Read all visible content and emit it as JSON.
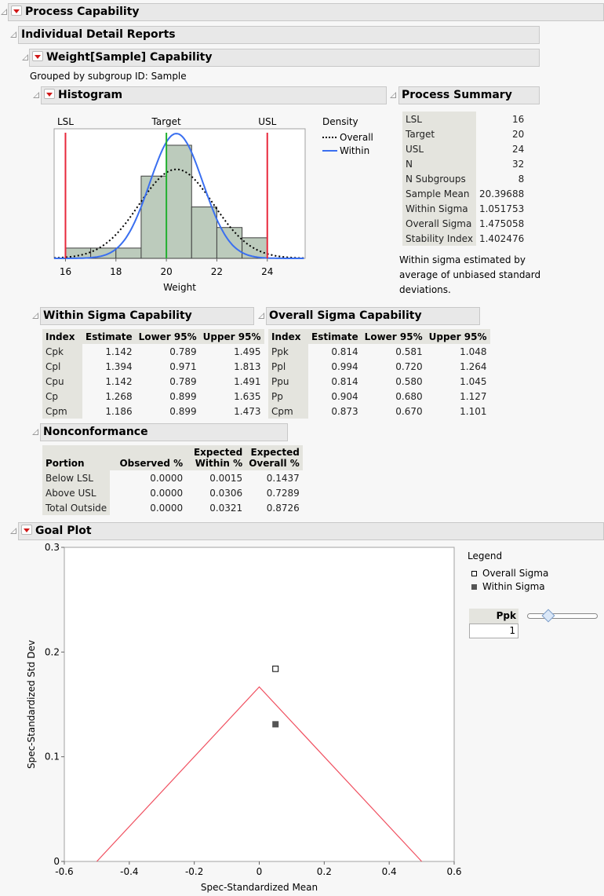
{
  "headers": {
    "process_capability": "Process Capability",
    "individual_detail_reports": "Individual Detail Reports",
    "weight_capability": "Weight[Sample] Capability",
    "histogram": "Histogram",
    "process_summary": "Process Summary",
    "within_sigma": "Within Sigma Capability",
    "overall_sigma": "Overall Sigma Capability",
    "nonconformance": "Nonconformance",
    "goal_plot": "Goal Plot"
  },
  "grouped_by": "Grouped by subgroup ID: Sample",
  "process_summary": {
    "rows": [
      [
        "LSL",
        "16"
      ],
      [
        "Target",
        "20"
      ],
      [
        "USL",
        "24"
      ],
      [
        "N",
        "32"
      ],
      [
        "N Subgroups",
        "8"
      ],
      [
        "Sample Mean",
        "20.39688"
      ],
      [
        "Within Sigma",
        "1.051753"
      ],
      [
        "Overall Sigma",
        "1.475058"
      ],
      [
        "Stability Index",
        "1.402476"
      ]
    ],
    "note": [
      "Within sigma estimated by",
      "average of unbiased standard",
      "deviations."
    ]
  },
  "within_sigma_table": {
    "columns": [
      "Index",
      "Estimate",
      "Lower 95%",
      "Upper 95%"
    ],
    "rows": [
      [
        "Cpk",
        "1.142",
        "0.789",
        "1.495"
      ],
      [
        "Cpl",
        "1.394",
        "0.971",
        "1.813"
      ],
      [
        "Cpu",
        "1.142",
        "0.789",
        "1.491"
      ],
      [
        "Cp",
        "1.268",
        "0.899",
        "1.635"
      ],
      [
        "Cpm",
        "1.186",
        "0.899",
        "1.473"
      ]
    ]
  },
  "overall_sigma_table": {
    "columns": [
      "Index",
      "Estimate",
      "Lower 95%",
      "Upper 95%"
    ],
    "rows": [
      [
        "Ppk",
        "0.814",
        "0.581",
        "1.048"
      ],
      [
        "Ppl",
        "0.994",
        "0.720",
        "1.264"
      ],
      [
        "Ppu",
        "0.814",
        "0.580",
        "1.045"
      ],
      [
        "Pp",
        "0.904",
        "0.680",
        "1.127"
      ],
      [
        "Cpm",
        "0.873",
        "0.670",
        "1.101"
      ]
    ]
  },
  "nonconformance_table": {
    "columns": [
      "Portion",
      "Observed %",
      "Expected Within %",
      "Expected Overall %"
    ],
    "rows": [
      [
        "Below LSL",
        "0.0000",
        "0.0015",
        "0.1437"
      ],
      [
        "Above USL",
        "0.0000",
        "0.0306",
        "0.7289"
      ],
      [
        "Total Outside",
        "0.0000",
        "0.0321",
        "0.8726"
      ]
    ]
  },
  "goal_legend": {
    "title": "Legend",
    "overall": "Overall Sigma",
    "within": "Within Sigma"
  },
  "ppk_control": {
    "label": "Ppk",
    "value": "1",
    "slider_fraction": 0.3
  },
  "colors": {
    "spec_limit": "#e8283c",
    "target": "#22b030",
    "within": "#3a6ff0",
    "bars": "#bccbbc",
    "goal_line": "#f05060"
  },
  "chart_data": [
    {
      "type": "bar",
      "xlabel": "Weight",
      "bin_edges": [
        16,
        17,
        18,
        19,
        20,
        21,
        22,
        23,
        24
      ],
      "counts": [
        1,
        1,
        1,
        8,
        11,
        5,
        3,
        2
      ],
      "xlim": [
        15.55,
        25.5
      ],
      "xticks": [
        16,
        18,
        20,
        22,
        24
      ],
      "ref_lines": [
        {
          "label": "LSL",
          "x": 16
        },
        {
          "label": "Target",
          "x": 20
        },
        {
          "label": "USL",
          "x": 24
        }
      ],
      "legend_title": "Density",
      "series": [
        {
          "name": "Overall",
          "mean": 20.39688,
          "sd": 1.475058,
          "style": "dotted"
        },
        {
          "name": "Within",
          "mean": 20.39688,
          "sd": 1.051753,
          "style": "solid"
        }
      ]
    },
    {
      "type": "scatter",
      "xlabel": "Spec-Standardized Mean",
      "ylabel": "Spec-Standardized Std Dev",
      "xlim": [
        -0.6,
        0.6
      ],
      "ylim": [
        0,
        0.3
      ],
      "xticks": [
        -0.6,
        -0.4,
        -0.2,
        0,
        0.2,
        0.4,
        0.6
      ],
      "yticks": [
        0,
        0.1,
        0.2,
        0.3
      ],
      "points": [
        {
          "name": "Overall Sigma",
          "x": 0.05,
          "y": 0.184,
          "marker": "open-square"
        },
        {
          "name": "Within Sigma",
          "x": 0.05,
          "y": 0.131,
          "marker": "filled-square"
        }
      ],
      "goal_line": [
        [
          -0.5,
          0
        ],
        [
          0,
          0.1667
        ],
        [
          0.5,
          0
        ]
      ]
    }
  ]
}
